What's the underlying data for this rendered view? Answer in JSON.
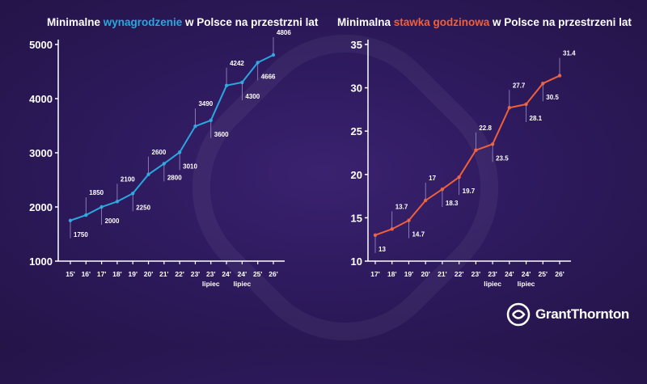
{
  "chart_data": [
    {
      "type": "line",
      "title_parts": [
        "Minimalne ",
        "wynagrodzenie",
        " w Polsce na przestrzni lat"
      ],
      "title_highlight_color": "#29a8e0",
      "line_color": "#29a8e0",
      "categories": [
        "15'",
        "16'",
        "17'",
        "18'",
        "19'",
        "20'",
        "21'",
        "22'",
        "23'",
        "23'",
        "24'",
        "24'",
        "25'",
        "26'"
      ],
      "sublabels": [
        "",
        "",
        "",
        "",
        "",
        "",
        "",
        "",
        "",
        "lipiec",
        "",
        "lipiec",
        "",
        ""
      ],
      "values": [
        1750,
        1850,
        2000,
        2100,
        2250,
        2600,
        2800,
        3010,
        3490,
        3600,
        4242,
        4300,
        4666,
        4806
      ],
      "value_labels": [
        "1750",
        "1850",
        "2000",
        "2100",
        "2250",
        "2600",
        "2800",
        "3010",
        "3490",
        "3600",
        "4242",
        "4300",
        "4666",
        "4806"
      ],
      "label_side": [
        "below",
        "above",
        "below",
        "above",
        "below",
        "above",
        "below",
        "below",
        "above",
        "below",
        "above",
        "below",
        "below",
        "above"
      ],
      "yticks": [
        1000,
        2000,
        3000,
        4000,
        5000
      ],
      "ylim": [
        1000,
        5000
      ]
    },
    {
      "type": "line",
      "title_parts": [
        "Minimalna ",
        "stawka godzinowa",
        " w Polsce na przestrzeni lat"
      ],
      "title_highlight_color": "#f0603a",
      "line_color": "#f0603a",
      "categories": [
        "17'",
        "18'",
        "19'",
        "20'",
        "21'",
        "22'",
        "23'",
        "23'",
        "24'",
        "24'",
        "25'",
        "26'"
      ],
      "sublabels": [
        "",
        "",
        "",
        "",
        "",
        "",
        "",
        "lipiec",
        "",
        "lipiec",
        "",
        ""
      ],
      "values": [
        13,
        13.7,
        14.7,
        17,
        18.3,
        19.7,
        22.8,
        23.5,
        27.7,
        28.1,
        30.5,
        31.4
      ],
      "value_labels": [
        "13",
        "13.7",
        "14.7",
        "17",
        "18.3",
        "19.7",
        "22.8",
        "23.5",
        "27.7",
        "28.1",
        "30.5",
        "31.4"
      ],
      "label_side": [
        "below",
        "above",
        "below",
        "above",
        "below",
        "below",
        "above",
        "below",
        "above",
        "below",
        "below",
        "above"
      ],
      "yticks": [
        10,
        15,
        20,
        25,
        30,
        35
      ],
      "ylim": [
        10,
        35
      ]
    }
  ],
  "logo": {
    "text": "GrantThornton",
    "icon": "grant-thornton-logo-icon"
  },
  "colors": {
    "background": "#2e1a5e",
    "blue": "#29a8e0",
    "orange": "#f0603a"
  }
}
